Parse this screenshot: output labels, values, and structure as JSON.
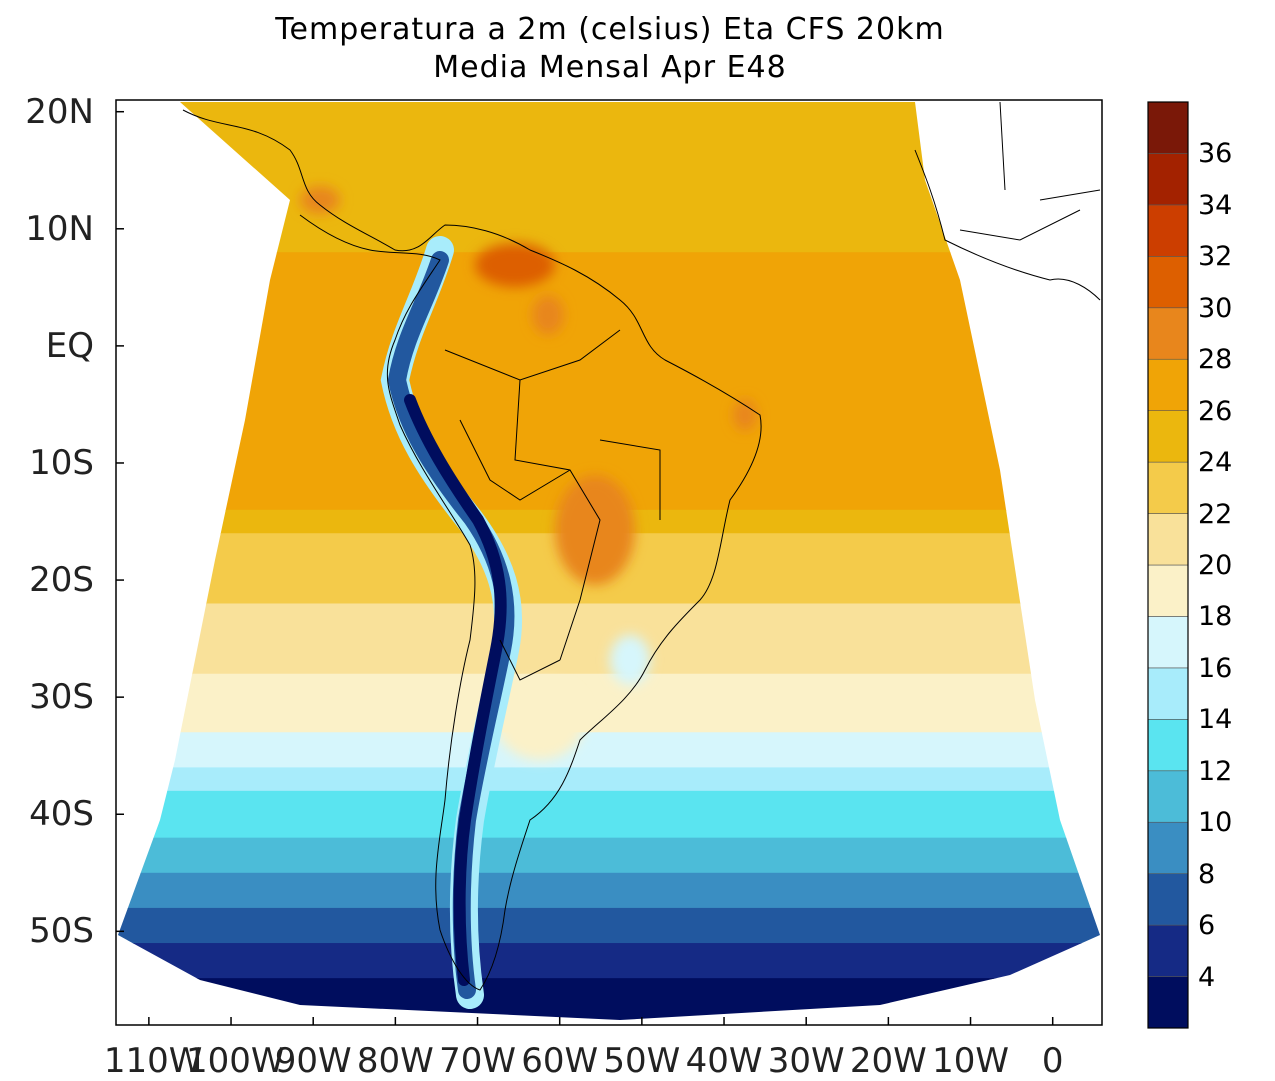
{
  "chart_data": {
    "type": "contour-map",
    "title": "Temperatura a 2m (celsius) Eta CFS 20km",
    "subtitle": "Media Mensal Apr  E48",
    "variable": "2m temperature",
    "units": "celsius",
    "model": "Eta CFS 20km",
    "region": "South America",
    "lat_ticks": [
      "20N",
      "10N",
      "EQ",
      "10S",
      "20S",
      "30S",
      "40S",
      "50S"
    ],
    "lat_values": [
      20,
      10,
      0,
      -10,
      -20,
      -30,
      -40,
      -50
    ],
    "lon_ticks": [
      "110W",
      "100W",
      "90W",
      "80W",
      "70W",
      "60W",
      "50W",
      "40W",
      "30W",
      "20W",
      "10W",
      "0"
    ],
    "lon_values": [
      -110,
      -100,
      -90,
      -80,
      -70,
      -60,
      -50,
      -40,
      -30,
      -20,
      -10,
      0
    ],
    "ylim": [
      -58,
      21
    ],
    "xlim": [
      -114,
      6
    ],
    "colorbar": {
      "levels": [
        4,
        6,
        8,
        10,
        12,
        14,
        16,
        18,
        20,
        22,
        24,
        26,
        28,
        30,
        32,
        34,
        36
      ],
      "colors": [
        "#000d5e",
        "#152a85",
        "#22589f",
        "#3a8ec2",
        "#4cbcd8",
        "#5ae4f0",
        "#a8ecfb",
        "#d6f6fc",
        "#fbf1c8",
        "#f9e19a",
        "#f4cb4a",
        "#ebb70e",
        "#f0a406",
        "#e8861c",
        "#dd5f00",
        "#cc3e00",
        "#a32200",
        "#7a1808"
      ]
    }
  }
}
